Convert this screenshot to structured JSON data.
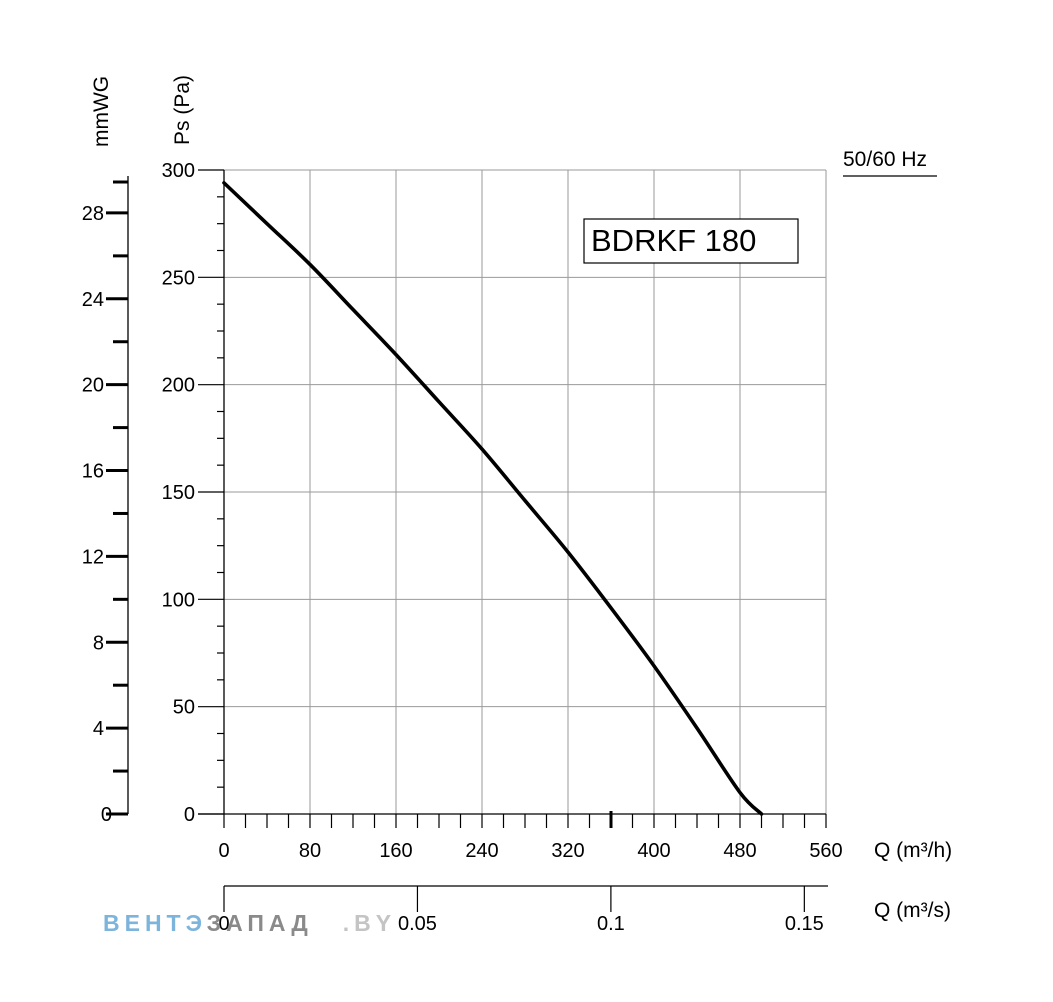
{
  "chart_data": {
    "type": "line",
    "model_label": "BDRKF 180",
    "frequency_label": "50/60 Hz",
    "x_axis": {
      "label": "Q (m³/h)",
      "range": [
        0,
        560
      ],
      "ticks": [
        0,
        80,
        160,
        240,
        320,
        400,
        480,
        560
      ],
      "tick_labels": [
        "0",
        "80",
        "160",
        "240",
        "320",
        "400",
        "480",
        "560"
      ]
    },
    "x2_axis": {
      "label": "Q (m³/s)",
      "range": [
        0,
        0.1556
      ],
      "ticks": [
        0,
        0.05,
        0.1,
        0.15
      ],
      "tick_labels": [
        "0",
        "0.05",
        "0.1",
        "0.15"
      ]
    },
    "y_axis": {
      "label": "Ps (Pa)",
      "range": [
        0,
        300
      ],
      "ticks": [
        0,
        50,
        100,
        150,
        200,
        250,
        300
      ],
      "tick_labels": [
        "0",
        "50",
        "100",
        "150",
        "200",
        "250",
        "300"
      ]
    },
    "y2_axis": {
      "label": "mmWG",
      "range": [
        0,
        30
      ],
      "ticks": [
        0,
        4,
        8,
        12,
        16,
        20,
        24,
        28
      ],
      "tick_labels": [
        "0",
        "4",
        "8",
        "12",
        "16",
        "20",
        "24",
        "28"
      ]
    },
    "grid": true,
    "series": [
      {
        "x": [
          0,
          40,
          80,
          120,
          160,
          200,
          240,
          280,
          320,
          360,
          400,
          440,
          480,
          500
        ],
        "y": [
          294,
          275,
          256,
          235,
          214,
          192,
          170,
          146,
          122,
          96,
          69,
          40,
          10,
          0
        ]
      }
    ]
  },
  "watermark": {
    "part1": "ВЕНТЭ",
    "part2": "ЗАПАД",
    "part3": ".BY",
    "color1": "#7db4dc",
    "color2": "#8a8a8a"
  }
}
